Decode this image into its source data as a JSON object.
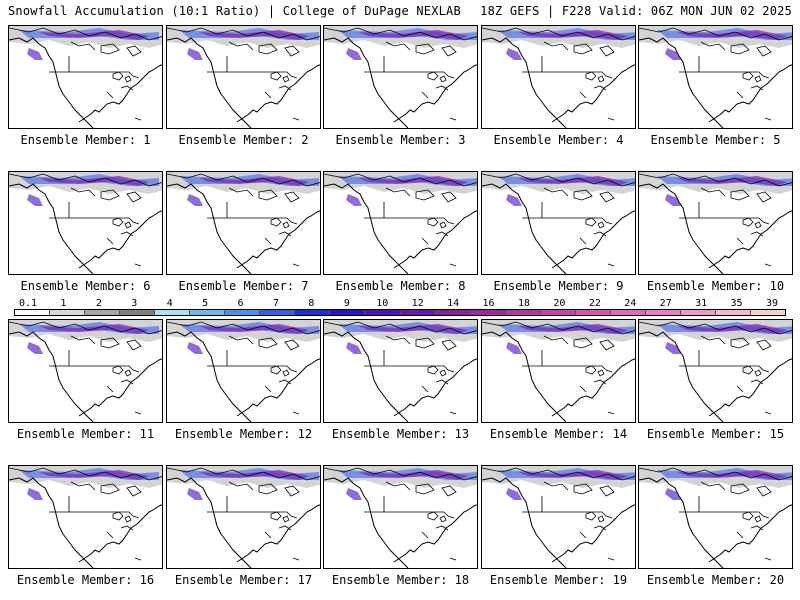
{
  "header": {
    "left_title": "Snowfall Accumulation (10:1 Ratio) | College of DuPage NEXLAB",
    "right_title": "18Z GEFS | F228 Valid: 06Z MON JUN 02 2025"
  },
  "panels": [
    {
      "label": "Ensemble Member: 1"
    },
    {
      "label": "Ensemble Member: 2"
    },
    {
      "label": "Ensemble Member: 3"
    },
    {
      "label": "Ensemble Member: 4"
    },
    {
      "label": "Ensemble Member: 5"
    },
    {
      "label": "Ensemble Member: 6"
    },
    {
      "label": "Ensemble Member: 7"
    },
    {
      "label": "Ensemble Member: 8"
    },
    {
      "label": "Ensemble Member: 9"
    },
    {
      "label": "Ensemble Member: 10"
    },
    {
      "label": "Ensemble Member: 11"
    },
    {
      "label": "Ensemble Member: 12"
    },
    {
      "label": "Ensemble Member: 13"
    },
    {
      "label": "Ensemble Member: 14"
    },
    {
      "label": "Ensemble Member: 15"
    },
    {
      "label": "Ensemble Member: 16"
    },
    {
      "label": "Ensemble Member: 17"
    },
    {
      "label": "Ensemble Member: 18"
    },
    {
      "label": "Ensemble Member: 19"
    },
    {
      "label": "Ensemble Member: 20"
    }
  ],
  "colorbar": {
    "labels": [
      "0.1",
      "1",
      "2",
      "3",
      "4",
      "5",
      "6",
      "7",
      "8",
      "9",
      "10",
      "12",
      "14",
      "16",
      "18",
      "20",
      "22",
      "24",
      "27",
      "31",
      "35",
      "39"
    ],
    "colors": [
      "#ffffff",
      "#d9d9d9",
      "#a6a6a6",
      "#7f7f7f",
      "#a8e4f0",
      "#6fb7ee",
      "#4a8fe8",
      "#3360e0",
      "#1f2fd8",
      "#2a17c8",
      "#4a16b8",
      "#6a1aa8",
      "#82229c",
      "#9a2a9e",
      "#b036a6",
      "#c444ae",
      "#d456b2",
      "#e06aba",
      "#e87fc4",
      "#f09ac8",
      "#f5b8c8",
      "#f8d2c8"
    ]
  }
}
